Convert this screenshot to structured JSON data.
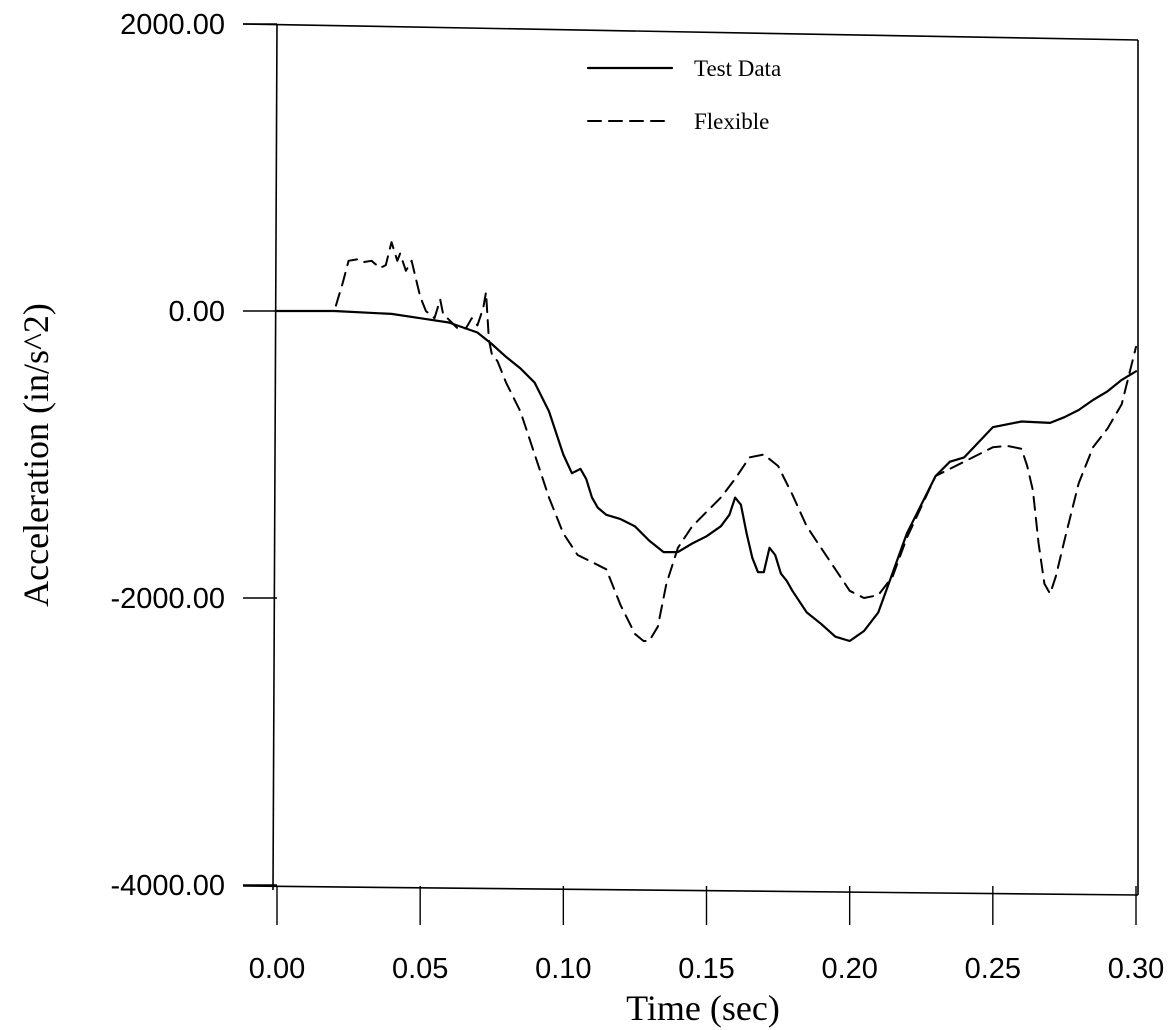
{
  "chart_data": {
    "type": "line",
    "title": "",
    "xlabel": "Time (sec)",
    "ylabel": "Acceleration (in/s^2)",
    "xlim": [
      0.0,
      0.3
    ],
    "ylim": [
      -4000,
      2000
    ],
    "x_ticks": [
      0.0,
      0.05,
      0.1,
      0.15,
      0.2,
      0.25,
      0.3
    ],
    "x_tick_labels": [
      "0.00",
      "0.05",
      "0.10",
      "0.15",
      "0.20",
      "0.25",
      "0.30"
    ],
    "y_ticks": [
      2000,
      0,
      -2000,
      -4000
    ],
    "y_tick_labels": [
      "2000.00",
      "0.00",
      "-2000.00",
      "-4000.00"
    ],
    "grid": false,
    "legend_position": "top-center",
    "series": [
      {
        "name": "Test Data",
        "style": "solid",
        "x": [
          0.0,
          0.02,
          0.04,
          0.05,
          0.06,
          0.07,
          0.075,
          0.08,
          0.085,
          0.09,
          0.095,
          0.1,
          0.103,
          0.106,
          0.108,
          0.11,
          0.112,
          0.115,
          0.12,
          0.125,
          0.13,
          0.135,
          0.14,
          0.145,
          0.15,
          0.155,
          0.158,
          0.16,
          0.162,
          0.164,
          0.166,
          0.168,
          0.17,
          0.172,
          0.174,
          0.176,
          0.178,
          0.18,
          0.185,
          0.19,
          0.195,
          0.2,
          0.205,
          0.21,
          0.22,
          0.23,
          0.235,
          0.24,
          0.25,
          0.26,
          0.27,
          0.275,
          0.28,
          0.285,
          0.29,
          0.295,
          0.3
        ],
        "y": [
          0,
          0,
          -20,
          -50,
          -80,
          -150,
          -230,
          -320,
          -400,
          -500,
          -700,
          -1000,
          -1130,
          -1100,
          -1170,
          -1300,
          -1370,
          -1420,
          -1450,
          -1500,
          -1600,
          -1680,
          -1680,
          -1620,
          -1570,
          -1500,
          -1420,
          -1300,
          -1350,
          -1550,
          -1720,
          -1820,
          -1820,
          -1650,
          -1700,
          -1830,
          -1880,
          -1950,
          -2100,
          -2180,
          -2270,
          -2300,
          -2230,
          -2100,
          -1550,
          -1150,
          -1050,
          -1020,
          -810,
          -770,
          -780,
          -740,
          -690,
          -620,
          -560,
          -480,
          -420
        ]
      },
      {
        "name": "Flexible",
        "style": "dashed",
        "x": [
          0.0,
          0.01,
          0.02,
          0.023,
          0.025,
          0.028,
          0.03,
          0.033,
          0.036,
          0.038,
          0.04,
          0.042,
          0.043,
          0.045,
          0.047,
          0.05,
          0.052,
          0.055,
          0.057,
          0.058,
          0.06,
          0.063,
          0.066,
          0.068,
          0.07,
          0.072,
          0.073,
          0.074,
          0.075,
          0.077,
          0.08,
          0.085,
          0.09,
          0.095,
          0.1,
          0.105,
          0.11,
          0.115,
          0.12,
          0.125,
          0.128,
          0.13,
          0.133,
          0.136,
          0.14,
          0.145,
          0.15,
          0.155,
          0.16,
          0.165,
          0.17,
          0.175,
          0.18,
          0.185,
          0.19,
          0.195,
          0.2,
          0.205,
          0.21,
          0.215,
          0.22,
          0.23,
          0.24,
          0.25,
          0.255,
          0.26,
          0.262,
          0.264,
          0.266,
          0.268,
          0.27,
          0.272,
          0.275,
          0.28,
          0.285,
          0.29,
          0.295,
          0.3
        ],
        "y": [
          0,
          0,
          0,
          200,
          350,
          360,
          340,
          350,
          300,
          320,
          480,
          350,
          400,
          280,
          350,
          100,
          0,
          -50,
          80,
          -20,
          -60,
          -120,
          -120,
          -50,
          -100,
          20,
          130,
          -200,
          -300,
          -350,
          -500,
          -700,
          -1000,
          -1300,
          -1550,
          -1700,
          -1750,
          -1800,
          -2050,
          -2250,
          -2300,
          -2300,
          -2200,
          -1900,
          -1650,
          -1500,
          -1400,
          -1300,
          -1170,
          -1020,
          -1000,
          -1080,
          -1280,
          -1500,
          -1650,
          -1800,
          -1950,
          -2000,
          -1980,
          -1850,
          -1580,
          -1150,
          -1050,
          -950,
          -940,
          -960,
          -1080,
          -1250,
          -1620,
          -1900,
          -1970,
          -1850,
          -1600,
          -1200,
          -950,
          -820,
          -650,
          -250
        ]
      }
    ]
  }
}
